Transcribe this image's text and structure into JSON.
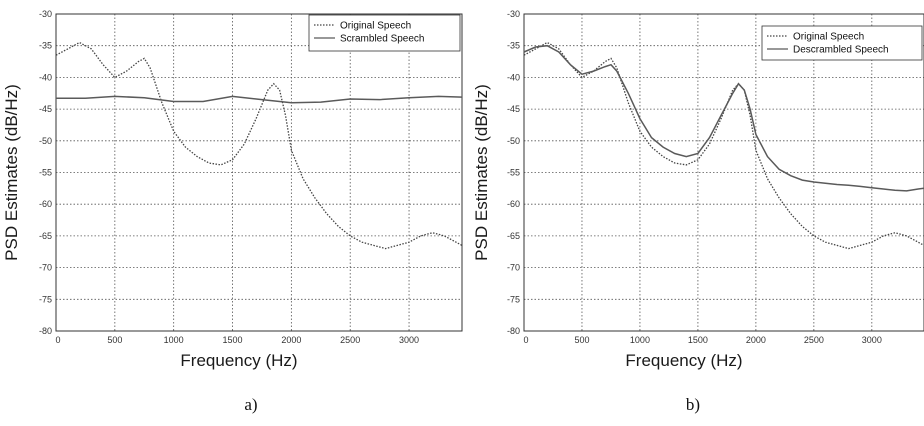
{
  "chart_data": [
    {
      "type": "line",
      "title": "",
      "caption": "a)",
      "xlabel": "Frequency (Hz)",
      "ylabel": "PSD Estimates (dB/Hz)",
      "xlim": [
        0,
        3450
      ],
      "ylim": [
        -80,
        -30
      ],
      "x_ticks": [
        0,
        500,
        1000,
        1500,
        2000,
        2500,
        3000
      ],
      "y_ticks": [
        -30,
        -35,
        -40,
        -45,
        -50,
        -55,
        -60,
        -65,
        -70,
        -75,
        -80
      ],
      "grid": true,
      "legend_position": "top-right",
      "series": [
        {
          "name": "Original Speech",
          "style": "dotted",
          "x": [
            0,
            100,
            200,
            300,
            400,
            500,
            600,
            700,
            750,
            800,
            900,
            1000,
            1100,
            1200,
            1300,
            1400,
            1500,
            1600,
            1700,
            1800,
            1850,
            1900,
            1950,
            2000,
            2100,
            2200,
            2300,
            2400,
            2500,
            2600,
            2700,
            2800,
            2900,
            3000,
            3100,
            3200,
            3300,
            3400,
            3450
          ],
          "y": [
            -36.5,
            -35.5,
            -34.5,
            -35.5,
            -38.0,
            -40.0,
            -39.0,
            -37.5,
            -37.0,
            -38.5,
            -44.0,
            -48.5,
            -51.0,
            -52.5,
            -53.5,
            -53.8,
            -53.0,
            -50.5,
            -46.5,
            -42.0,
            -41.0,
            -42.0,
            -46.0,
            -51.5,
            -56.0,
            -59.0,
            -61.5,
            -63.5,
            -65.0,
            -66.0,
            -66.5,
            -67.0,
            -66.5,
            -66.0,
            -65.0,
            -64.5,
            -65.0,
            -66.0,
            -66.5
          ]
        },
        {
          "name": "Scrambled Speech",
          "style": "solid",
          "x": [
            0,
            250,
            500,
            750,
            1000,
            1250,
            1500,
            1750,
            2000,
            2250,
            2500,
            2750,
            3000,
            3250,
            3450
          ],
          "y": [
            -43.3,
            -43.3,
            -43.0,
            -43.2,
            -43.8,
            -43.8,
            -43.0,
            -43.5,
            -44.0,
            -43.9,
            -43.4,
            -43.5,
            -43.2,
            -43.0,
            -43.1
          ]
        }
      ]
    },
    {
      "type": "line",
      "title": "",
      "caption": "b)",
      "xlabel": "Frequency (Hz)",
      "ylabel": "PSD Estimates (dB/Hz)",
      "xlim": [
        0,
        3450
      ],
      "ylim": [
        -80,
        -30
      ],
      "x_ticks": [
        0,
        500,
        1000,
        1500,
        2000,
        2500,
        3000
      ],
      "y_ticks": [
        -30,
        -35,
        -40,
        -45,
        -50,
        -55,
        -60,
        -65,
        -70,
        -75,
        -80
      ],
      "grid": true,
      "legend_position": "top-right",
      "series": [
        {
          "name": "Original Speech",
          "style": "dotted",
          "x": [
            0,
            100,
            200,
            300,
            400,
            500,
            600,
            700,
            750,
            800,
            900,
            1000,
            1100,
            1200,
            1300,
            1400,
            1500,
            1600,
            1700,
            1800,
            1850,
            1900,
            1950,
            2000,
            2100,
            2200,
            2300,
            2400,
            2500,
            2600,
            2700,
            2800,
            2900,
            3000,
            3100,
            3200,
            3300,
            3400,
            3450
          ],
          "y": [
            -36.5,
            -35.5,
            -34.5,
            -35.5,
            -38.0,
            -40.0,
            -39.0,
            -37.5,
            -37.0,
            -38.5,
            -44.0,
            -48.5,
            -51.0,
            -52.5,
            -53.5,
            -53.8,
            -53.0,
            -50.5,
            -46.5,
            -42.0,
            -41.0,
            -42.0,
            -46.0,
            -51.5,
            -56.0,
            -59.0,
            -61.5,
            -63.5,
            -65.0,
            -66.0,
            -66.5,
            -67.0,
            -66.5,
            -66.0,
            -65.0,
            -64.5,
            -65.0,
            -66.0,
            -66.5
          ]
        },
        {
          "name": "Descrambled Speech",
          "style": "solid",
          "x": [
            0,
            100,
            200,
            300,
            400,
            500,
            600,
            700,
            750,
            800,
            900,
            1000,
            1100,
            1200,
            1300,
            1400,
            1500,
            1600,
            1700,
            1800,
            1850,
            1900,
            1950,
            2000,
            2100,
            2200,
            2300,
            2400,
            2500,
            2600,
            2700,
            2800,
            2900,
            3000,
            3100,
            3200,
            3300,
            3400,
            3450
          ],
          "y": [
            -36.0,
            -35.2,
            -35.0,
            -36.0,
            -38.0,
            -39.5,
            -39.0,
            -38.3,
            -38.0,
            -39.0,
            -42.5,
            -46.5,
            -49.5,
            -51.0,
            -52.0,
            -52.5,
            -52.0,
            -49.5,
            -46.0,
            -42.5,
            -41.0,
            -42.0,
            -45.0,
            -49.0,
            -52.5,
            -54.5,
            -55.5,
            -56.2,
            -56.5,
            -56.7,
            -56.9,
            -57.0,
            -57.2,
            -57.4,
            -57.6,
            -57.8,
            -57.9,
            -57.6,
            -57.5
          ]
        }
      ]
    }
  ]
}
